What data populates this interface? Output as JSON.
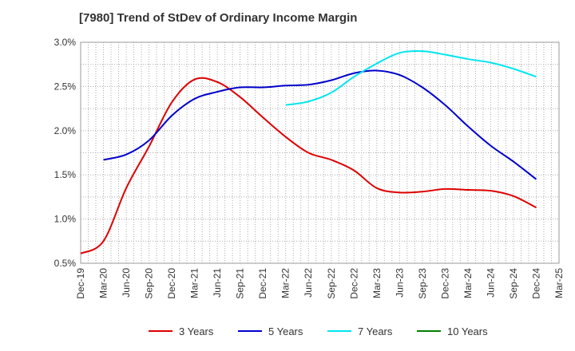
{
  "chart_data": {
    "type": "line",
    "title": "[7980]  Trend of StDev of Ordinary Income Margin",
    "xlabel": "",
    "ylabel": "",
    "categories": [
      "Dec-19",
      "Mar-20",
      "Jun-20",
      "Sep-20",
      "Dec-20",
      "Mar-21",
      "Jun-21",
      "Sep-21",
      "Dec-21",
      "Mar-22",
      "Jun-22",
      "Sep-22",
      "Dec-22",
      "Mar-23",
      "Jun-23",
      "Sep-23",
      "Dec-23",
      "Mar-24",
      "Jun-24",
      "Sep-24",
      "Dec-24",
      "Mar-25"
    ],
    "ylim": [
      0.5,
      3.0
    ],
    "yticks": [
      0.5,
      1.0,
      1.5,
      2.0,
      2.5,
      3.0
    ],
    "ytick_labels": [
      "0.5%",
      "1.0%",
      "1.5%",
      "2.0%",
      "2.5%",
      "3.0%"
    ],
    "grid": true,
    "legend_position": "bottom",
    "series": [
      {
        "name": "3 Years",
        "color": "#dd0000",
        "values": [
          0.61,
          0.75,
          1.35,
          1.82,
          2.32,
          2.58,
          2.55,
          2.38,
          2.15,
          1.93,
          1.75,
          1.67,
          1.55,
          1.35,
          1.3,
          1.31,
          1.34,
          1.33,
          1.32,
          1.26,
          1.13,
          null
        ]
      },
      {
        "name": "5 Years",
        "color": "#0000cc",
        "values": [
          null,
          1.67,
          1.73,
          1.89,
          2.17,
          2.36,
          2.44,
          2.49,
          2.49,
          2.51,
          2.52,
          2.57,
          2.65,
          2.68,
          2.63,
          2.49,
          2.29,
          2.05,
          1.83,
          1.65,
          1.45,
          null
        ]
      },
      {
        "name": "7 Years",
        "color": "#00e5ee",
        "values": [
          null,
          null,
          null,
          null,
          null,
          null,
          null,
          null,
          null,
          2.29,
          2.33,
          2.43,
          2.61,
          2.76,
          2.88,
          2.9,
          2.86,
          2.81,
          2.77,
          2.7,
          2.61,
          null
        ]
      },
      {
        "name": "10 Years",
        "color": "#008000",
        "values": [
          null,
          null,
          null,
          null,
          null,
          null,
          null,
          null,
          null,
          null,
          null,
          null,
          null,
          null,
          null,
          null,
          null,
          null,
          null,
          null,
          null,
          null
        ]
      }
    ]
  }
}
